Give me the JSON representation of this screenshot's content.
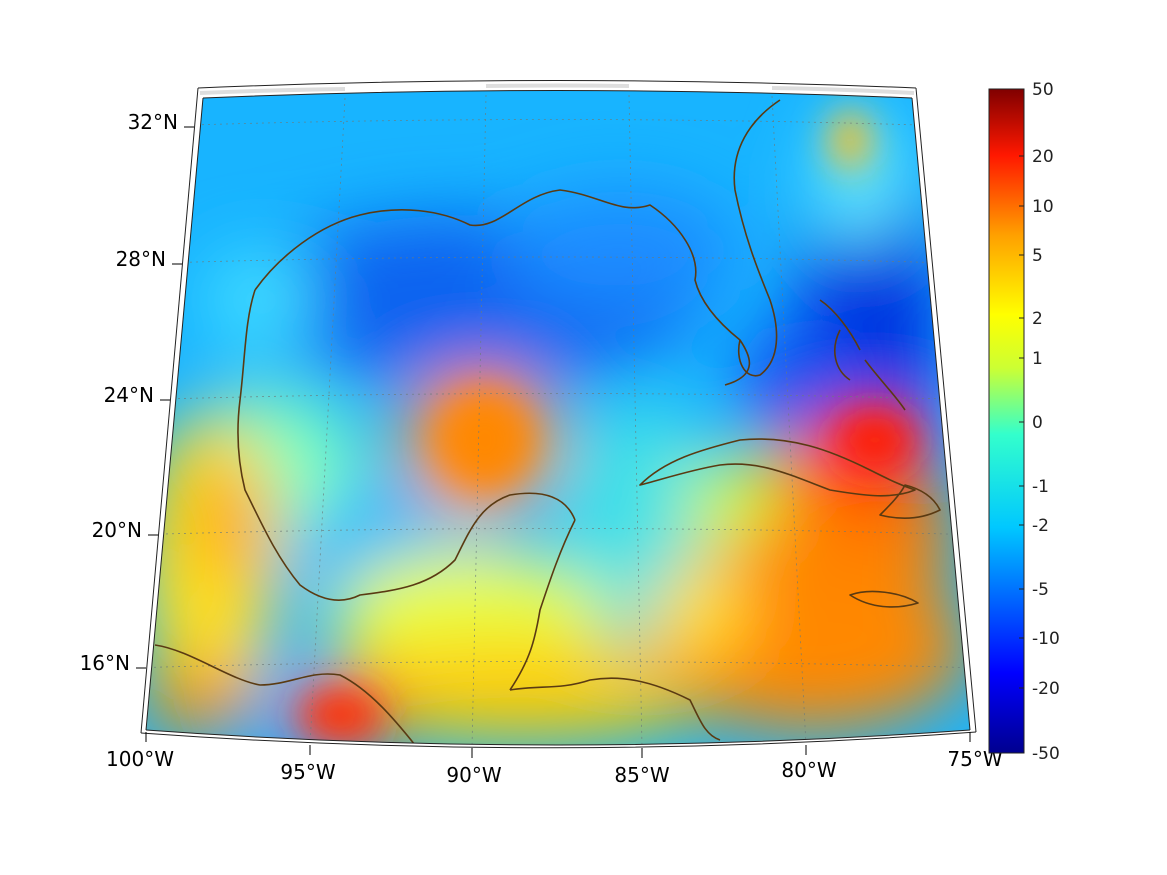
{
  "map": {
    "lon_range": [
      -100,
      -75
    ],
    "lat_range": [
      14,
      33
    ],
    "colormap": "jet",
    "coastline_color": "#5a3a12",
    "lon_labels": [
      "100°W",
      "95°W",
      "90°W",
      "85°W",
      "80°W",
      "75°W"
    ],
    "lat_labels": [
      "32°N",
      "28°N",
      "24°N",
      "20°N",
      "16°N"
    ]
  },
  "colorbar": {
    "tick_labels": [
      "50",
      "20",
      "10",
      "5",
      "2",
      "1",
      "0",
      "-1",
      "-2",
      "-5",
      "-10",
      "-20",
      "-50"
    ]
  }
}
